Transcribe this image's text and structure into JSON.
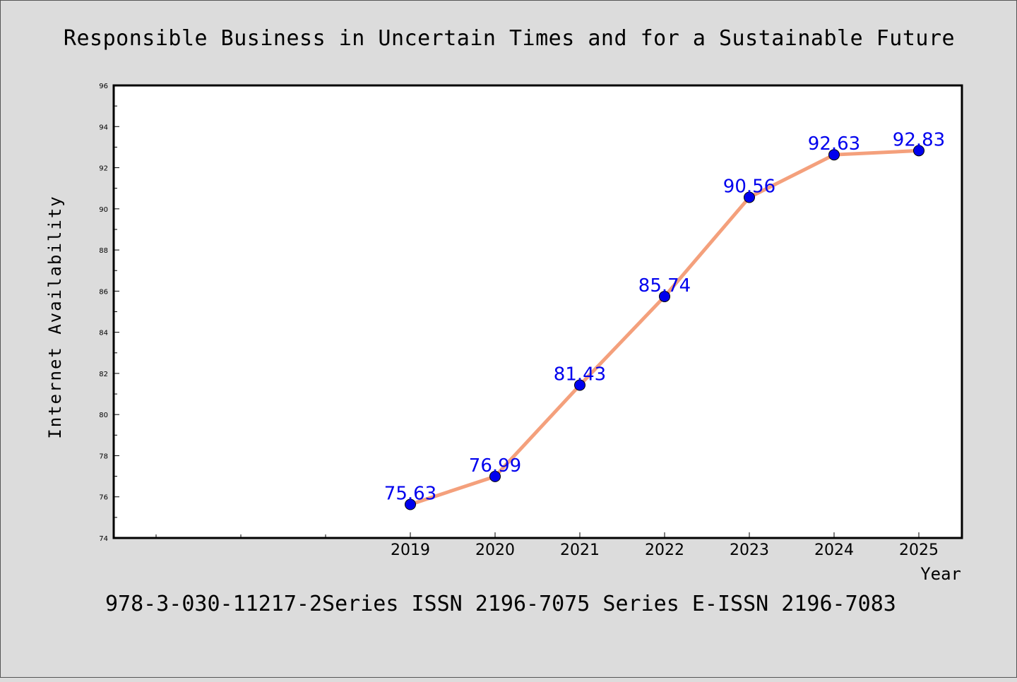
{
  "colors": {
    "background": "#dcdcdc",
    "plot_background": "#ffffff",
    "line": "#f4a07c",
    "marker": "#0000ee",
    "data_label": "#0000ee"
  },
  "footer": "978-3-030-11217-2Series ISSN 2196-7075 Series E-ISSN 2196-7083",
  "chart_data": {
    "type": "line",
    "title": "Responsible Business in Uncertain Times and for a Sustainable Future",
    "xlabel": "Year",
    "ylabel": "Internet Availability",
    "x": [
      "2019",
      "2020",
      "2021",
      "2022",
      "2023",
      "2024",
      "2025"
    ],
    "series": [
      {
        "values": [
          75.63,
          76.99,
          81.43,
          85.74,
          90.56,
          92.63,
          92.83
        ],
        "labels": [
          "75.63",
          "76.99",
          "81.43",
          "85.74",
          "90.56",
          "92.63",
          "92.83"
        ]
      }
    ],
    "ylim": [
      74,
      96
    ],
    "yticks": [
      "74",
      "76",
      "78",
      "80",
      "82",
      "84",
      "86",
      "88",
      "90",
      "92",
      "94",
      "96"
    ],
    "grid": false,
    "legend": "none"
  }
}
